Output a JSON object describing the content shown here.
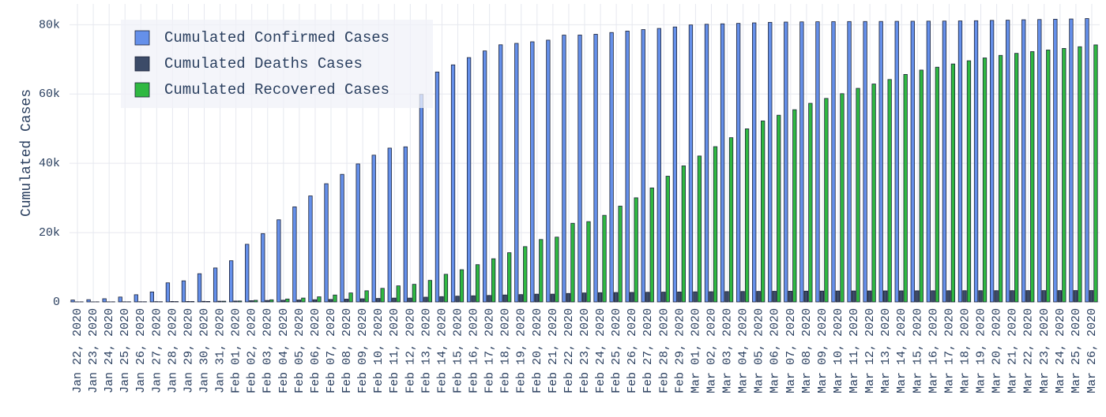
{
  "chart_data": {
    "type": "bar",
    "y_label": "Cumulated Cases",
    "categories": [
      "Jan 22, 2020",
      "Jan 23, 2020",
      "Jan 24, 2020",
      "Jan 25, 2020",
      "Jan 26, 2020",
      "Jan 27, 2020",
      "Jan 28, 2020",
      "Jan 29, 2020",
      "Jan 30, 2020",
      "Jan 31, 2020",
      "Feb 01, 2020",
      "Feb 02, 2020",
      "Feb 03, 2020",
      "Feb 04, 2020",
      "Feb 05, 2020",
      "Feb 06, 2020",
      "Feb 07, 2020",
      "Feb 08, 2020",
      "Feb 09, 2020",
      "Feb 10, 2020",
      "Feb 11, 2020",
      "Feb 12, 2020",
      "Feb 13, 2020",
      "Feb 14, 2020",
      "Feb 15, 2020",
      "Feb 16, 2020",
      "Feb 17, 2020",
      "Feb 18, 2020",
      "Feb 19, 2020",
      "Feb 20, 2020",
      "Feb 21, 2020",
      "Feb 22, 2020",
      "Feb 23, 2020",
      "Feb 24, 2020",
      "Feb 25, 2020",
      "Feb 26, 2020",
      "Feb 27, 2020",
      "Feb 28, 2020",
      "Feb 29, 2020",
      "Mar 01, 2020",
      "Mar 02, 2020",
      "Mar 03, 2020",
      "Mar 04, 2020",
      "Mar 05, 2020",
      "Mar 06, 2020",
      "Mar 07, 2020",
      "Mar 08, 2020",
      "Mar 09, 2020",
      "Mar 10, 2020",
      "Mar 11, 2020",
      "Mar 12, 2020",
      "Mar 13, 2020",
      "Mar 14, 2020",
      "Mar 15, 2020",
      "Mar 16, 2020",
      "Mar 17, 2020",
      "Mar 18, 2020",
      "Mar 19, 2020",
      "Mar 20, 2020",
      "Mar 21, 2020",
      "Mar 22, 2020",
      "Mar 23, 2020",
      "Mar 24, 2020",
      "Mar 25, 2020",
      "Mar 26, 2020"
    ],
    "series": [
      {
        "name": "Cumulated Confirmed Cases",
        "color": "#6590ea",
        "values": [
          548,
          643,
          920,
          1406,
          2075,
          2877,
          5509,
          6087,
          8141,
          9802,
          11891,
          16630,
          19716,
          23707,
          27440,
          30587,
          34110,
          36814,
          39829,
          42354,
          44386,
          44759,
          59895,
          66358,
          68413,
          70513,
          72434,
          74211,
          74619,
          75077,
          75550,
          77001,
          77022,
          77241,
          77754,
          78166,
          78600,
          78928,
          79356,
          79932,
          80136,
          80261,
          80386,
          80537,
          80690,
          80770,
          80823,
          80860,
          80887,
          80921,
          80932,
          80945,
          80977,
          81003,
          81033,
          81058,
          81102,
          81156,
          81250,
          81305,
          81435,
          81498,
          81591,
          81661,
          81782
        ]
      },
      {
        "name": "Cumulated Deaths Cases",
        "color": "#3c4b68",
        "values": [
          17,
          18,
          26,
          42,
          56,
          82,
          131,
          133,
          171,
          213,
          259,
          361,
          425,
          491,
          563,
          633,
          718,
          805,
          905,
          1012,
          1112,
          1113,
          1371,
          1523,
          1666,
          1770,
          1868,
          2007,
          2122,
          2247,
          2251,
          2442,
          2592,
          2663,
          2715,
          2744,
          2788,
          2835,
          2870,
          2912,
          2943,
          2981,
          3012,
          3042,
          3070,
          3097,
          3119,
          3136,
          3158,
          3169,
          3176,
          3189,
          3199,
          3213,
          3226,
          3237,
          3245,
          3249,
          3253,
          3259,
          3274,
          3274,
          3281,
          3285,
          3291
        ]
      },
      {
        "name": "Cumulated Recovered Cases",
        "color": "#2fb841",
        "values": [
          28,
          30,
          36,
          39,
          49,
          58,
          101,
          120,
          135,
          214,
          275,
          463,
          614,
          843,
          1115,
          1476,
          1996,
          2596,
          3219,
          3918,
          4636,
          5082,
          6217,
          7977,
          9298,
          10755,
          12462,
          14206,
          15962,
          18014,
          18704,
          22699,
          23170,
          24990,
          27650,
          30053,
          32898,
          36291,
          39279,
          42118,
          44810,
          47404,
          49955,
          52240,
          53888,
          55478,
          57320,
          58735,
          60106,
          61644,
          62901,
          64196,
          65660,
          66911,
          67749,
          68679,
          69601,
          70420,
          71150,
          71740,
          72244,
          72703,
          73159,
          73650,
          74181
        ]
      }
    ],
    "ylim": [
      0,
      86000
    ],
    "yticks": [
      0,
      {
        "value": 20000,
        "label": "20k"
      },
      {
        "value": 40000,
        "label": "40k"
      },
      {
        "value": 60000,
        "label": "60k"
      },
      {
        "value": 80000,
        "label": "80k"
      }
    ],
    "grid": true,
    "legend": "top-left"
  }
}
